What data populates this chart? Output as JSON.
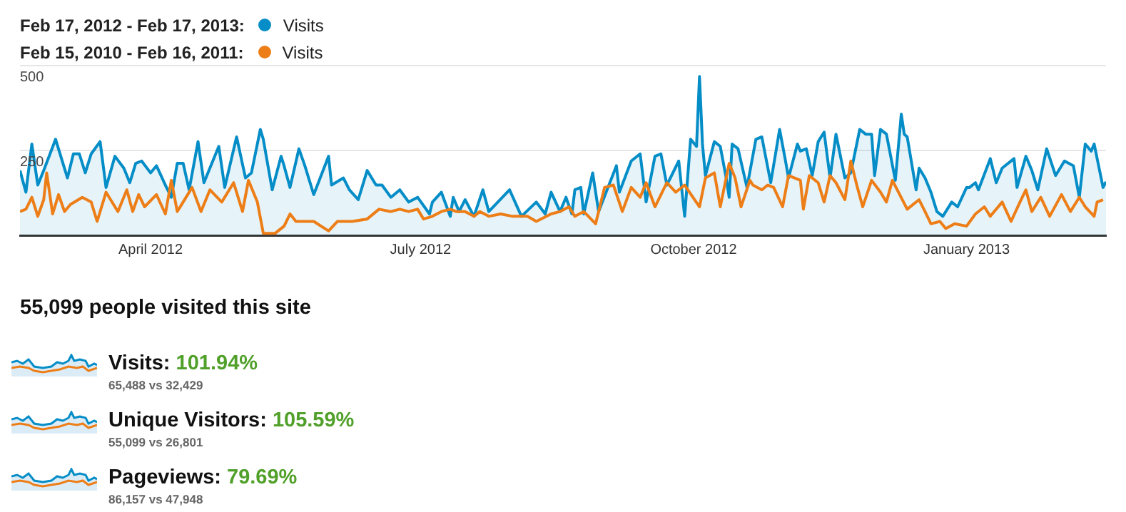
{
  "chart_data": {
    "type": "line",
    "series": [
      {
        "name": "Visits",
        "type": "area",
        "color": "#058dc7",
        "x": [
          "2012-02-17",
          "2012-02-19",
          "2012-02-21",
          "2012-02-23",
          "2012-02-25",
          "2012-02-29",
          "2012-03-04",
          "2012-03-06",
          "2012-03-08",
          "2012-03-10",
          "2012-03-12",
          "2012-03-15",
          "2012-03-17",
          "2012-03-20",
          "2012-03-23",
          "2012-03-25",
          "2012-03-27",
          "2012-03-29",
          "2012-04-01",
          "2012-04-03",
          "2012-04-06",
          "2012-04-08",
          "2012-04-10",
          "2012-04-12",
          "2012-04-14",
          "2012-04-17",
          "2012-04-19",
          "2012-04-21",
          "2012-04-24",
          "2012-04-26",
          "2012-04-30",
          "2012-05-03",
          "2012-05-05",
          "2012-05-08",
          "2012-05-09",
          "2012-05-12",
          "2012-05-15",
          "2012-05-16",
          "2012-05-18",
          "2012-05-21",
          "2012-05-23",
          "2012-05-26",
          "2012-05-31",
          "2012-06-01",
          "2012-06-05",
          "2012-06-07",
          "2012-06-10",
          "2012-06-13",
          "2012-06-16",
          "2012-06-18",
          "2012-06-21",
          "2012-06-24",
          "2012-06-27",
          "2012-06-30",
          "2012-07-04",
          "2012-07-05",
          "2012-07-08",
          "2012-07-11",
          "2012-07-12",
          "2012-07-14",
          "2012-07-16",
          "2012-07-19",
          "2012-07-22",
          "2012-07-24",
          "2012-07-31",
          "2012-08-04",
          "2012-08-09",
          "2012-08-12",
          "2012-08-14",
          "2012-08-17",
          "2012-08-19",
          "2012-08-21",
          "2012-08-22",
          "2012-08-24",
          "2012-08-25",
          "2012-08-28",
          "2012-08-30",
          "2012-09-05",
          "2012-09-06",
          "2012-09-10",
          "2012-09-13",
          "2012-09-15",
          "2012-09-18",
          "2012-09-20",
          "2012-09-22",
          "2012-09-26",
          "2012-09-28",
          "2012-09-30",
          "2012-10-02",
          "2012-10-03",
          "2012-10-04",
          "2012-10-05",
          "2012-10-08",
          "2012-10-10",
          "2012-10-12",
          "2012-10-13",
          "2012-10-14",
          "2012-10-16",
          "2012-10-19",
          "2012-10-22",
          "2012-10-24",
          "2012-10-27",
          "2012-10-30",
          "2012-11-01",
          "2012-11-02",
          "2012-11-05",
          "2012-11-06",
          "2012-11-08",
          "2012-11-10",
          "2012-11-12",
          "2012-11-14",
          "2012-11-16",
          "2012-11-18",
          "2012-11-21",
          "2012-11-23",
          "2012-11-26",
          "2012-11-28",
          "2012-11-30",
          "2012-12-01",
          "2012-12-03",
          "2012-12-05",
          "2012-12-08",
          "2012-12-10",
          "2012-12-11",
          "2012-12-12",
          "2012-12-15",
          "2012-12-16",
          "2012-12-18",
          "2012-12-20",
          "2012-12-22",
          "2012-12-24",
          "2012-12-27",
          "2012-12-29",
          "2013-01-01",
          "2013-01-02",
          "2013-01-04",
          "2013-01-05",
          "2013-01-09",
          "2013-01-11",
          "2013-01-13",
          "2013-01-17",
          "2013-01-18",
          "2013-01-21",
          "2013-01-23",
          "2013-01-25",
          "2013-01-28",
          "2013-01-31",
          "2013-02-03",
          "2013-02-06",
          "2013-02-08",
          "2013-02-10",
          "2013-02-12",
          "2013-02-13",
          "2013-02-16",
          "2013-02-17"
        ],
        "values": [
          191,
          127,
          269,
          148,
          191,
          283,
          169,
          240,
          240,
          184,
          240,
          276,
          141,
          233,
          198,
          155,
          212,
          219,
          184,
          205,
          148,
          112,
          212,
          212,
          134,
          276,
          155,
          198,
          262,
          141,
          290,
          169,
          184,
          312,
          283,
          134,
          233,
          205,
          141,
          255,
          205,
          120,
          233,
          148,
          169,
          134,
          105,
          191,
          148,
          148,
          112,
          134,
          98,
          112,
          63,
          98,
          127,
          56,
          112,
          70,
          105,
          56,
          134,
          70,
          134,
          56,
          98,
          63,
          127,
          70,
          112,
          63,
          134,
          141,
          63,
          184,
          70,
          205,
          127,
          219,
          240,
          98,
          233,
          240,
          148,
          219,
          56,
          283,
          262,
          468,
          269,
          176,
          276,
          262,
          169,
          112,
          269,
          255,
          141,
          283,
          290,
          155,
          312,
          219,
          169,
          269,
          248,
          255,
          176,
          276,
          304,
          169,
          298,
          169,
          184,
          312,
          298,
          298,
          176,
          312,
          298,
          162,
          357,
          298,
          290,
          134,
          198,
          169,
          127,
          70,
          56,
          98,
          84,
          141,
          141,
          155,
          134,
          226,
          155,
          198,
          226,
          141,
          233,
          191,
          134,
          255,
          176,
          219,
          205,
          112,
          269,
          248,
          269,
          141,
          158
        ]
      },
      {
        "name": "Visits",
        "color": "#ed7e17",
        "x": [
          "2012-02-17",
          "2012-02-19",
          "2012-02-21",
          "2012-02-23",
          "2012-02-25",
          "2012-02-26",
          "2012-02-28",
          "2012-03-01",
          "2012-03-03",
          "2012-03-05",
          "2012-03-09",
          "2012-03-12",
          "2012-03-14",
          "2012-03-17",
          "2012-03-21",
          "2012-03-24",
          "2012-03-26",
          "2012-03-28",
          "2012-03-30",
          "2012-04-03",
          "2012-04-06",
          "2012-04-08",
          "2012-04-10",
          "2012-04-15",
          "2012-04-18",
          "2012-04-21",
          "2012-04-25",
          "2012-04-29",
          "2012-05-02",
          "2012-05-04",
          "2012-05-07",
          "2012-05-09",
          "2012-05-13",
          "2012-05-16",
          "2012-05-18",
          "2012-05-20",
          "2012-05-22",
          "2012-05-26",
          "2012-05-31",
          "2012-06-03",
          "2012-06-08",
          "2012-06-13",
          "2012-06-17",
          "2012-06-21",
          "2012-06-24",
          "2012-06-27",
          "2012-06-30",
          "2012-07-02",
          "2012-07-05",
          "2012-07-08",
          "2012-07-11",
          "2012-07-13",
          "2012-07-16",
          "2012-07-19",
          "2012-07-21",
          "2012-07-24",
          "2012-07-28",
          "2012-08-01",
          "2012-08-06",
          "2012-08-09",
          "2012-08-14",
          "2012-08-17",
          "2012-08-20",
          "2012-08-22",
          "2012-08-25",
          "2012-08-29",
          "2012-09-01",
          "2012-09-04",
          "2012-09-07",
          "2012-09-10",
          "2012-09-13",
          "2012-09-15",
          "2012-09-18",
          "2012-09-22",
          "2012-09-25",
          "2012-09-28",
          "2012-10-03",
          "2012-10-05",
          "2012-10-08",
          "2012-10-10",
          "2012-10-13",
          "2012-10-15",
          "2012-10-17",
          "2012-10-20",
          "2012-10-21",
          "2012-10-24",
          "2012-10-26",
          "2012-10-28",
          "2012-10-31",
          "2012-11-02",
          "2012-11-06",
          "2012-11-07",
          "2012-11-09",
          "2012-11-12",
          "2012-11-14",
          "2012-11-16",
          "2012-11-18",
          "2012-11-21",
          "2012-11-23",
          "2012-11-25",
          "2012-11-27",
          "2012-11-30",
          "2012-12-03",
          "2012-12-05",
          "2012-12-07",
          "2012-12-12",
          "2012-12-16",
          "2012-12-18",
          "2012-12-20",
          "2012-12-23",
          "2012-12-25",
          "2012-12-28",
          "2013-01-01",
          "2013-01-04",
          "2013-01-07",
          "2013-01-09",
          "2013-01-13",
          "2013-01-16",
          "2013-01-19",
          "2013-01-21",
          "2013-01-23",
          "2013-01-26",
          "2013-01-29",
          "2013-02-02",
          "2013-02-05",
          "2013-02-08",
          "2013-02-10",
          "2013-02-13",
          "2013-02-14",
          "2013-02-16"
        ],
        "values": [
          70,
          77,
          112,
          56,
          105,
          184,
          63,
          120,
          70,
          91,
          112,
          98,
          41,
          127,
          70,
          134,
          70,
          120,
          84,
          120,
          63,
          162,
          70,
          141,
          70,
          134,
          98,
          155,
          70,
          162,
          98,
          6,
          6,
          27,
          63,
          41,
          41,
          41,
          13,
          41,
          41,
          48,
          77,
          70,
          77,
          70,
          77,
          48,
          56,
          70,
          77,
          70,
          70,
          56,
          70,
          56,
          63,
          56,
          56,
          41,
          63,
          70,
          84,
          56,
          70,
          34,
          141,
          148,
          70,
          141,
          112,
          155,
          84,
          155,
          127,
          148,
          84,
          169,
          184,
          84,
          212,
          169,
          84,
          162,
          148,
          134,
          148,
          141,
          84,
          176,
          162,
          77,
          176,
          155,
          98,
          176,
          155,
          105,
          219,
          148,
          84,
          162,
          127,
          98,
          162,
          77,
          105,
          70,
          34,
          41,
          20,
          34,
          27,
          63,
          84,
          56,
          98,
          41,
          98,
          134,
          70,
          112,
          56,
          120,
          70,
          112,
          84,
          56,
          98,
          105
        ]
      }
    ],
    "xlim": [
      "2012-02-17",
      "2013-02-17"
    ],
    "xticks": [
      {
        "value": "2012-04-01",
        "label": "April 2012"
      },
      {
        "value": "2012-07-01",
        "label": "July 2012"
      },
      {
        "value": "2012-10-01",
        "label": "October 2012"
      },
      {
        "value": "2013-01-01",
        "label": "January 2013"
      }
    ],
    "ylim": [
      0,
      500
    ],
    "yticks": [
      250,
      500
    ],
    "grid": "y",
    "legend": "top left",
    "marker": "none",
    "annotations": [
      "Feb 17, 2012 - Feb 17, 2013:",
      "Feb 15, 2010 - Feb 16, 2011:",
      "55,099 people visited this site",
      "Visits: 101.94%",
      "65,488 vs 32,429",
      "Unique Visitors: 105.59%",
      "55,099 vs 26,801",
      "Pageviews: 79.69%",
      "86,157 vs 47,948"
    ]
  }
}
